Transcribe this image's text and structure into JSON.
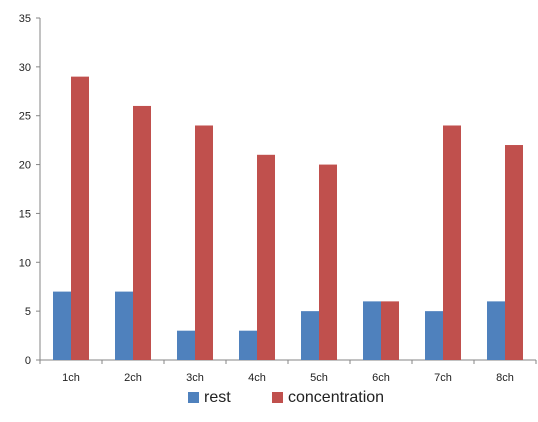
{
  "chart_data": {
    "type": "bar",
    "categories": [
      "1ch",
      "2ch",
      "3ch",
      "4ch",
      "5ch",
      "6ch",
      "7ch",
      "8ch"
    ],
    "series": [
      {
        "name": "rest",
        "color": "#4F81BD",
        "values": [
          7,
          7,
          3,
          3,
          5,
          6,
          5,
          6
        ]
      },
      {
        "name": "concentration",
        "color": "#C0504D",
        "values": [
          29,
          26,
          24,
          21,
          20,
          6,
          24,
          22
        ]
      }
    ],
    "yticks": [
      "0",
      "5",
      "10",
      "15",
      "20",
      "25",
      "30",
      "35"
    ],
    "ylim": [
      0,
      35
    ],
    "grid": false,
    "legend_position": "bottom"
  }
}
